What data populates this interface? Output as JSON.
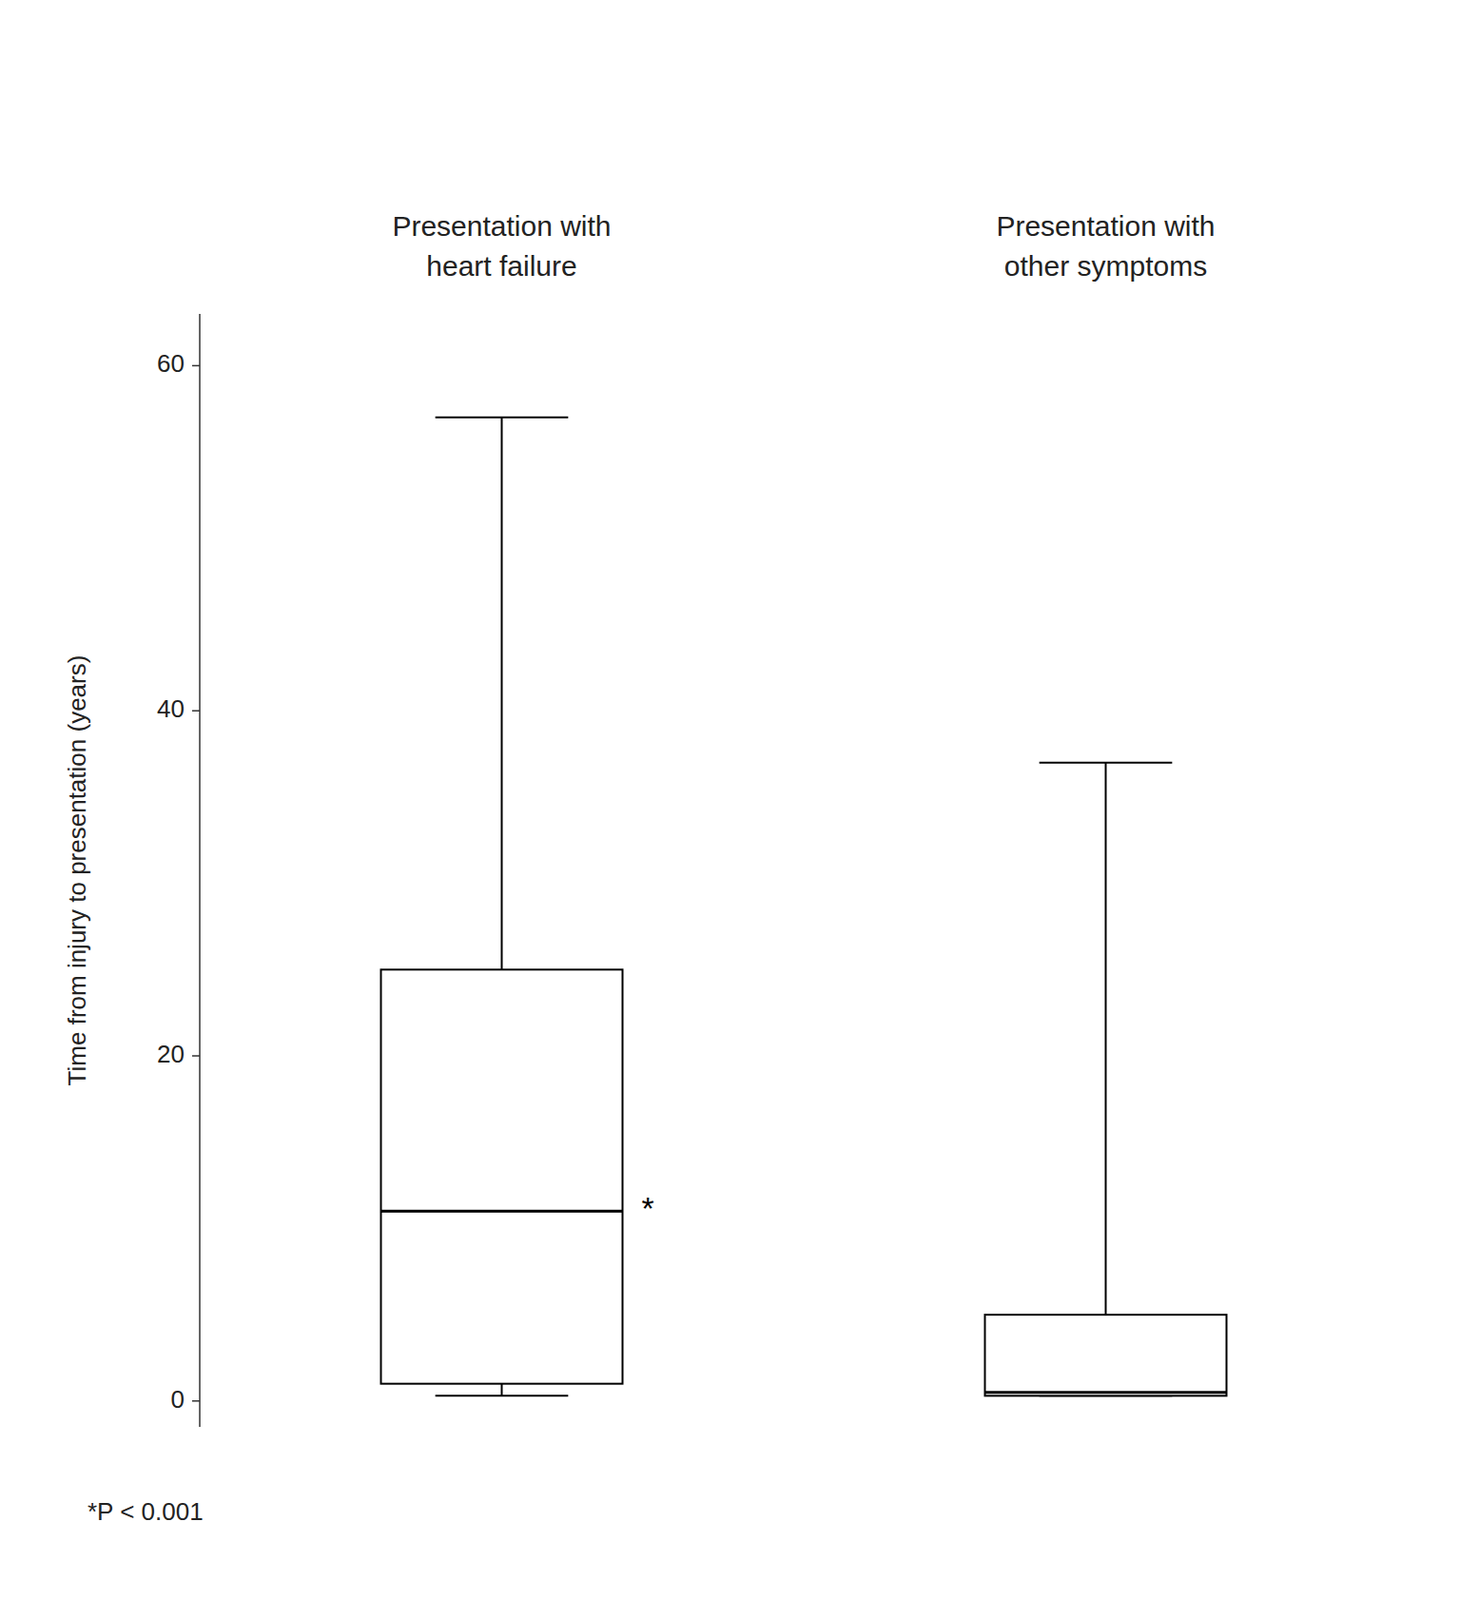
{
  "chart_data": {
    "type": "box",
    "categories": [
      "Presentation with\nheart failure",
      "Presentation with\nother symptoms"
    ],
    "boxes": [
      {
        "whisker_low": 0.3,
        "q1": 1.0,
        "median": 11.0,
        "q3": 25.0,
        "whisker_high": 57.0,
        "annotation": "*"
      },
      {
        "whisker_low": 0.3,
        "q1": 0.3,
        "median": 0.5,
        "q3": 5.0,
        "whisker_high": 37.0
      }
    ],
    "y_label": "Time from injury to presentation (years)",
    "footnote": "*P < 0.001",
    "ylim": [
      -1.5,
      63
    ],
    "yticks": [
      0,
      20,
      40,
      60
    ],
    "color": "#000000",
    "grid": false,
    "tick_labels": "y"
  }
}
